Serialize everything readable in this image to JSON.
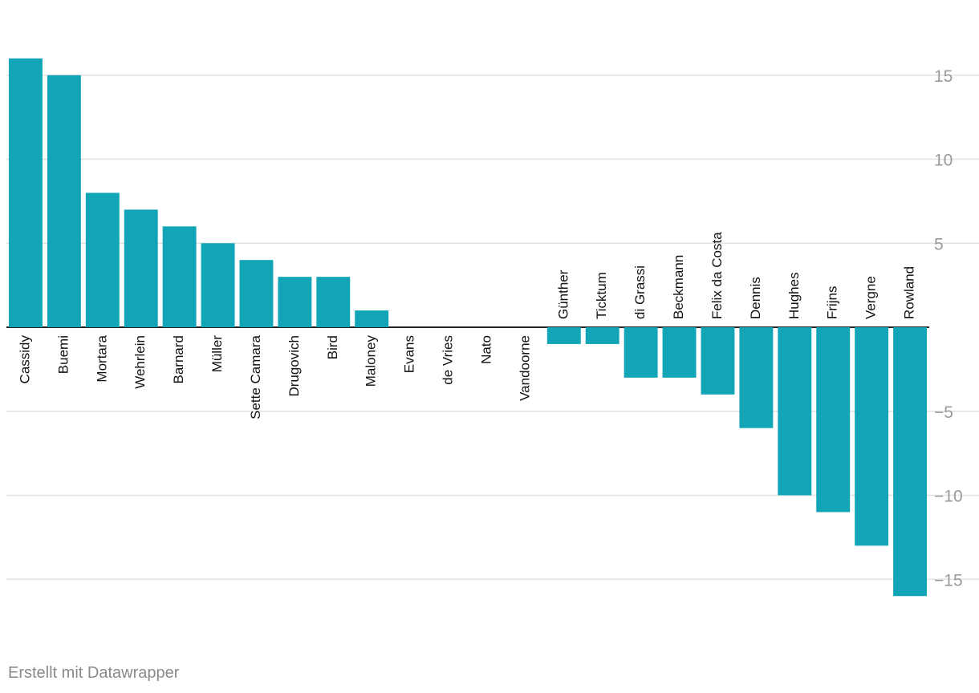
{
  "chart_data": {
    "type": "bar",
    "categories": [
      "Cassidy",
      "Buemi",
      "Mortara",
      "Wehrlein",
      "Barnard",
      "Müller",
      "Sette Camara",
      "Drugovich",
      "Bird",
      "Maloney",
      "Evans",
      "de Vries",
      "Nato",
      "Vandoorne",
      "Günther",
      "Ticktum",
      "di Grassi",
      "Beckmann",
      "Felix da Costa",
      "Dennis",
      "Hughes",
      "Frijns",
      "Vergne",
      "Rowland"
    ],
    "values": [
      16,
      15,
      8,
      7,
      6,
      5,
      4,
      3,
      3,
      1,
      0,
      0,
      0,
      0,
      -1,
      -1,
      -3,
      -3,
      -4,
      -6,
      -10,
      -11,
      -13,
      -16
    ],
    "yticks": [
      15,
      10,
      5,
      -5,
      -10,
      -15
    ],
    "ytick_labels": [
      "15",
      "10",
      "5",
      "−5",
      "−10",
      "−15"
    ],
    "ylim": [
      -16,
      16
    ],
    "grid": true,
    "axis_position": "right",
    "bar_color": "#12a5b8"
  },
  "footer": {
    "credit": "Erstellt mit Datawrapper"
  }
}
